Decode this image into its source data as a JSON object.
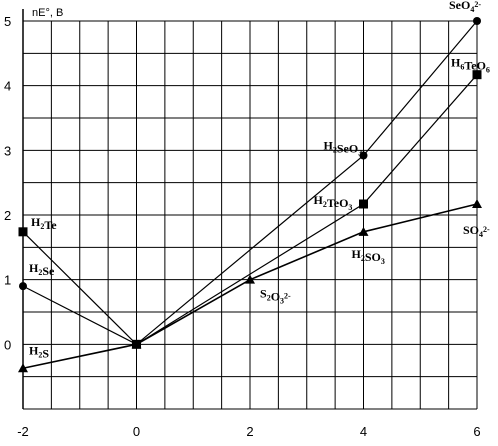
{
  "chart_data": {
    "type": "line",
    "ylabel": "nE°, B",
    "xlim": [
      -2,
      6
    ],
    "ylim": [
      -1,
      5
    ],
    "x_ticks": [
      -2,
      0,
      2,
      4,
      6
    ],
    "y_ticks": [
      0,
      1,
      2,
      3,
      4,
      5
    ],
    "x_tick_labels": [
      "-2",
      "0",
      "2",
      "4",
      "6"
    ],
    "y_tick_labels": [
      "0",
      "1",
      "2",
      "3",
      "4",
      "5"
    ],
    "grid": true,
    "series": [
      {
        "marker": "circle",
        "points": [
          {
            "x": -2,
            "y": 0.9,
            "label": "H2Se"
          },
          {
            "x": 0,
            "y": 0,
            "label": ""
          },
          {
            "x": 4,
            "y": 2.92,
            "label": "H2SeO3"
          },
          {
            "x": 6,
            "y": 5.0,
            "label": "SeO4 2-"
          }
        ]
      },
      {
        "marker": "square",
        "points": [
          {
            "x": -2,
            "y": 1.74,
            "label": "H2Te"
          },
          {
            "x": 0,
            "y": 0,
            "label": ""
          },
          {
            "x": 4,
            "y": 2.17,
            "label": "H2TeO3"
          },
          {
            "x": 6,
            "y": 4.17,
            "label": "H6TeO6"
          }
        ]
      },
      {
        "marker": "triangle",
        "points": [
          {
            "x": -2,
            "y": -0.37,
            "label": "H2S"
          },
          {
            "x": 0,
            "y": 0,
            "label": ""
          },
          {
            "x": 2,
            "y": 1.0,
            "label": "S2O3 2-"
          },
          {
            "x": 4,
            "y": 1.74,
            "label": "H2SO3"
          },
          {
            "x": 6,
            "y": 2.17,
            "label": "SO4 2-"
          }
        ]
      }
    ]
  }
}
